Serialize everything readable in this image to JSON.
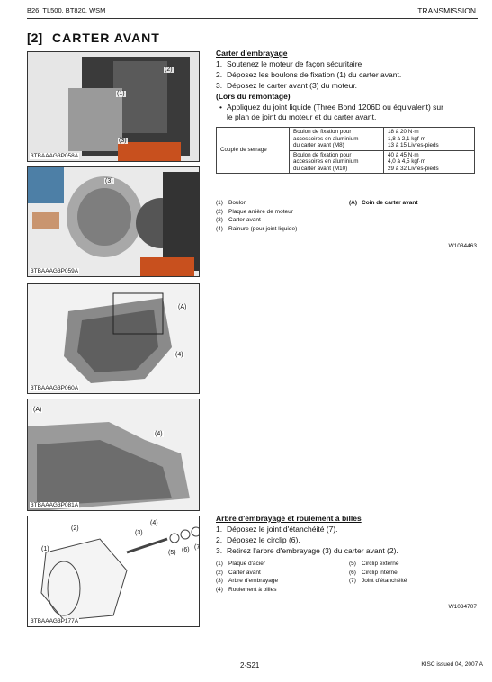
{
  "header": {
    "left": "B26, TL500, BT820, WSM",
    "right": "TRANSMISSION"
  },
  "title": {
    "number": "[2]",
    "text": "CARTER AVANT"
  },
  "figures": [
    {
      "callouts": [
        "(2)",
        "(1)",
        "(3)"
      ],
      "caption": "3TBAAAG3P058A"
    },
    {
      "callouts": [
        "(3)"
      ],
      "caption": "3TBAAAG3P059A"
    },
    {
      "callouts": [
        "(A)",
        "(4)"
      ],
      "caption": "3TBAAAG3P060A"
    },
    {
      "callouts": [
        "(A)",
        "(4)"
      ],
      "caption": "3TBAAAG3P081A"
    },
    {
      "callouts": [
        "(4)",
        "(2)",
        "(3)",
        "(1)",
        "(5)",
        "(6)",
        "(7)"
      ],
      "caption": "3TBAAAG3P177A"
    }
  ],
  "sections": [
    {
      "heading": "Carter d'embrayage",
      "steps": [
        {
          "num": "1.",
          "text": "Soutenez le moteur de façon sécuritaire"
        },
        {
          "num": "2.",
          "text": "Déposez les boulons de fixation (1) du carter avant."
        },
        {
          "num": "3.",
          "text": "Déposez le carter avant (3) du moteur."
        }
      ],
      "remontage": {
        "heading": "(Lors du remontage)",
        "bullet": "•",
        "text": [
          "Appliquez du joint liquide (Three Bond 1206D ou équivalent) sur",
          "le plan de joint du moteur et du carter avant."
        ]
      },
      "table": {
        "row_header": "Couple de serrage",
        "rows": [
          {
            "desc": [
              "Boulon de fixation pour",
              "accessoires en aluminium",
              "du carter avant (M8)"
            ],
            "values": [
              "18 à 20 N·m",
              "1,8 à 2,1 kgf·m",
              "13 à 15 Livres-pieds"
            ]
          },
          {
            "desc": [
              "Boulon de fixation pour",
              "accessoires en aluminium",
              "du carter avant (M10)"
            ],
            "values": [
              "40 à 45 N·m",
              "4,0 à 4,5 kgf·m",
              "29 à 32 Livres-pieds"
            ]
          }
        ]
      },
      "legend": [
        [
          {
            "num": "(1)",
            "text": "Boulon"
          },
          {
            "num": "(2)",
            "text": "Plaque arrière de moteur"
          },
          {
            "num": "(3)",
            "text": "Carter avant"
          },
          {
            "num": "(4)",
            "text": "Rainure (pour joint liquide)"
          }
        ],
        [
          {
            "num": "(A)",
            "text": "Coin de carter avant"
          }
        ]
      ],
      "code": "W1034463"
    },
    {
      "heading": "Arbre d'embrayage et roulement à billes",
      "steps": [
        {
          "num": "1.",
          "text": "Déposez le joint d'étanchéité (7)."
        },
        {
          "num": "2.",
          "text": "Déposez le circlip (6)."
        },
        {
          "num": "3.",
          "text": "Retirez l'arbre d'embrayage (3) du carter avant (2)."
        }
      ],
      "legend": [
        [
          {
            "num": "(1)",
            "text": "Plaque d'acier"
          },
          {
            "num": "(2)",
            "text": "Carter avant"
          },
          {
            "num": "(3)",
            "text": "Arbre d'embrayage"
          },
          {
            "num": "(4)",
            "text": "Roulement à billes"
          }
        ],
        [
          {
            "num": "(5)",
            "text": "Circlip externe"
          },
          {
            "num": "(6)",
            "text": "Circlip interne"
          },
          {
            "num": "(7)",
            "text": "Joint d'étanchéité"
          }
        ]
      ],
      "code": "W1034707"
    }
  ],
  "footer": {
    "page": "2-S21",
    "issue": "KISC issued 04, 2007 A"
  }
}
